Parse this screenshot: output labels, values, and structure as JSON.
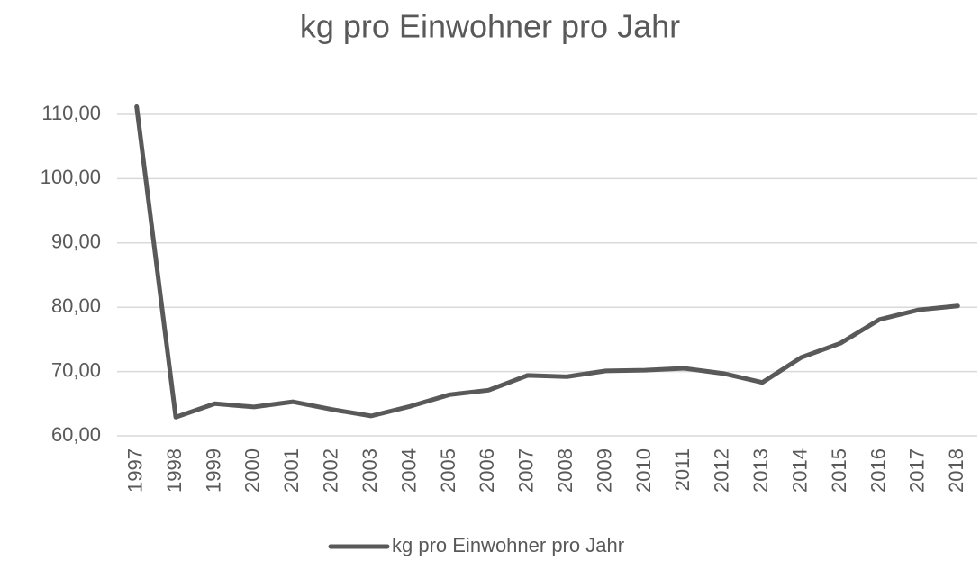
{
  "chart_data": {
    "type": "line",
    "title": "kg pro Einwohner pro Jahr",
    "categories": [
      "1997",
      "1998",
      "1999",
      "2000",
      "2001",
      "2002",
      "2003",
      "2004",
      "2005",
      "2006",
      "2007",
      "2008",
      "2009",
      "2010",
      "2011",
      "2012",
      "2013",
      "2014",
      "2015",
      "2016",
      "2017",
      "2018"
    ],
    "series": [
      {
        "name": "kg pro Einwohner pro Jahr",
        "color": "#595959",
        "values": [
          111.2,
          62.9,
          65.0,
          64.5,
          65.3,
          64.1,
          63.1,
          64.6,
          66.4,
          67.1,
          69.4,
          69.2,
          70.1,
          70.2,
          70.5,
          69.7,
          68.3,
          72.2,
          74.4,
          78.1,
          79.6,
          80.2
        ]
      }
    ],
    "ylim": [
      60,
      110
    ],
    "yticks": [
      {
        "value": 60,
        "label": "60,00"
      },
      {
        "value": 70,
        "label": "70,00"
      },
      {
        "value": 80,
        "label": "80,00"
      },
      {
        "value": 90,
        "label": "90,00"
      },
      {
        "value": 100,
        "label": "100,00"
      },
      {
        "value": 110,
        "label": "110,00"
      }
    ],
    "grid": true,
    "legend": "bottom"
  }
}
